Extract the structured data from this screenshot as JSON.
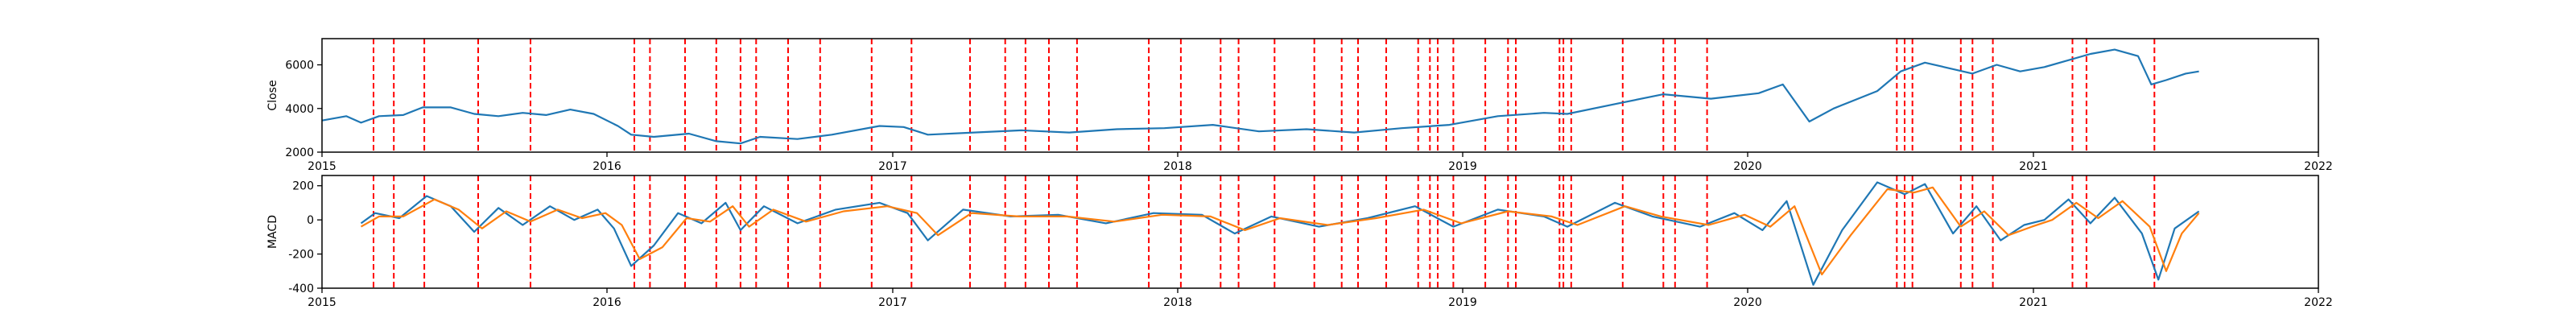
{
  "chart_data": [
    {
      "type": "line",
      "ylabel": "Close",
      "xlabel": "",
      "title": "",
      "xlim": [
        "2015-01-01",
        "2022-01-01"
      ],
      "ylim": [
        2000,
        7200
      ],
      "yticks": [
        2000,
        4000,
        6000
      ],
      "xticks": [
        "2015",
        "2016",
        "2017",
        "2018",
        "2019",
        "2020",
        "2021",
        "2022"
      ],
      "grid": false,
      "series": [
        {
          "color": "#1f77b4",
          "points": [
            [
              "2015-01-01",
              3450
            ],
            [
              "2015-02-01",
              3650
            ],
            [
              "2015-02-20",
              3350
            ],
            [
              "2015-03-15",
              3650
            ],
            [
              "2015-04-15",
              3700
            ],
            [
              "2015-05-10",
              4050
            ],
            [
              "2015-06-15",
              4050
            ],
            [
              "2015-07-15",
              3750
            ],
            [
              "2015-08-15",
              3650
            ],
            [
              "2015-09-15",
              3800
            ],
            [
              "2015-10-15",
              3700
            ],
            [
              "2015-11-15",
              3950
            ],
            [
              "2015-12-15",
              3750
            ],
            [
              "2016-01-15",
              3200
            ],
            [
              "2016-02-01",
              2800
            ],
            [
              "2016-03-01",
              2700
            ],
            [
              "2016-04-15",
              2850
            ],
            [
              "2016-05-20",
              2500
            ],
            [
              "2016-06-20",
              2400
            ],
            [
              "2016-07-15",
              2700
            ],
            [
              "2016-09-01",
              2600
            ],
            [
              "2016-10-15",
              2800
            ],
            [
              "2016-12-15",
              3200
            ],
            [
              "2017-01-15",
              3150
            ],
            [
              "2017-02-15",
              2800
            ],
            [
              "2017-04-15",
              2900
            ],
            [
              "2017-06-15",
              3000
            ],
            [
              "2017-08-15",
              2900
            ],
            [
              "2017-10-15",
              3050
            ],
            [
              "2017-12-15",
              3100
            ],
            [
              "2018-02-15",
              3250
            ],
            [
              "2018-04-15",
              2950
            ],
            [
              "2018-06-15",
              3050
            ],
            [
              "2018-08-15",
              2900
            ],
            [
              "2018-10-15",
              3100
            ],
            [
              "2018-12-15",
              3250
            ],
            [
              "2019-01-15",
              3450
            ],
            [
              "2019-02-15",
              3650
            ],
            [
              "2019-04-15",
              3800
            ],
            [
              "2019-05-15",
              3750
            ],
            [
              "2019-07-15",
              4200
            ],
            [
              "2019-09-15",
              4650
            ],
            [
              "2019-11-15",
              4450
            ],
            [
              "2020-01-15",
              4700
            ],
            [
              "2020-02-15",
              5100
            ],
            [
              "2020-03-20",
              3400
            ],
            [
              "2020-04-20",
              4000
            ],
            [
              "2020-06-15",
              4800
            ],
            [
              "2020-07-15",
              5700
            ],
            [
              "2020-08-15",
              6100
            ],
            [
              "2020-10-15",
              5600
            ],
            [
              "2020-11-15",
              6000
            ],
            [
              "2020-12-15",
              5700
            ],
            [
              "2021-01-15",
              5900
            ],
            [
              "2021-03-15",
              6500
            ],
            [
              "2021-04-15",
              6700
            ],
            [
              "2021-05-15",
              6400
            ],
            [
              "2021-06-01",
              5100
            ],
            [
              "2021-06-20",
              5300
            ],
            [
              "2021-07-15",
              5600
            ],
            [
              "2021-08-01",
              5700
            ]
          ]
        }
      ]
    },
    {
      "type": "line",
      "ylabel": "MACD",
      "xlabel": "",
      "title": "",
      "xlim": [
        "2015-01-01",
        "2022-01-01"
      ],
      "ylim": [
        -400,
        260
      ],
      "yticks": [
        -400,
        -200,
        0,
        200
      ],
      "xticks": [
        "2015",
        "2016",
        "2017",
        "2018",
        "2019",
        "2020",
        "2021",
        "2022"
      ],
      "grid": false,
      "series": [
        {
          "color": "#1f77b4",
          "points": [
            [
              "2015-02-20",
              -20
            ],
            [
              "2015-03-10",
              40
            ],
            [
              "2015-04-10",
              10
            ],
            [
              "2015-05-15",
              140
            ],
            [
              "2015-06-15",
              80
            ],
            [
              "2015-07-15",
              -70
            ],
            [
              "2015-08-15",
              70
            ],
            [
              "2015-09-15",
              -30
            ],
            [
              "2015-10-20",
              80
            ],
            [
              "2015-11-20",
              0
            ],
            [
              "2015-12-20",
              60
            ],
            [
              "2016-01-10",
              -50
            ],
            [
              "2016-02-01",
              -270
            ],
            [
              "2016-03-01",
              -150
            ],
            [
              "2016-04-01",
              40
            ],
            [
              "2016-05-01",
              -20
            ],
            [
              "2016-06-01",
              100
            ],
            [
              "2016-06-20",
              -60
            ],
            [
              "2016-07-20",
              80
            ],
            [
              "2016-09-01",
              -20
            ],
            [
              "2016-10-20",
              60
            ],
            [
              "2016-12-15",
              100
            ],
            [
              "2017-01-20",
              40
            ],
            [
              "2017-02-15",
              -120
            ],
            [
              "2017-04-01",
              60
            ],
            [
              "2017-06-01",
              20
            ],
            [
              "2017-08-01",
              30
            ],
            [
              "2017-10-01",
              -20
            ],
            [
              "2017-12-01",
              40
            ],
            [
              "2018-02-01",
              30
            ],
            [
              "2018-03-15",
              -80
            ],
            [
              "2018-05-01",
              20
            ],
            [
              "2018-07-01",
              -40
            ],
            [
              "2018-09-01",
              10
            ],
            [
              "2018-11-01",
              80
            ],
            [
              "2018-12-20",
              -40
            ],
            [
              "2019-02-15",
              60
            ],
            [
              "2019-04-15",
              20
            ],
            [
              "2019-05-15",
              -40
            ],
            [
              "2019-07-15",
              100
            ],
            [
              "2019-09-01",
              20
            ],
            [
              "2019-11-01",
              -40
            ],
            [
              "2019-12-15",
              40
            ],
            [
              "2020-01-20",
              -60
            ],
            [
              "2020-02-20",
              110
            ],
            [
              "2020-03-25",
              -380
            ],
            [
              "2020-05-01",
              -60
            ],
            [
              "2020-06-15",
              220
            ],
            [
              "2020-07-20",
              150
            ],
            [
              "2020-08-15",
              210
            ],
            [
              "2020-09-20",
              -80
            ],
            [
              "2020-10-20",
              80
            ],
            [
              "2020-11-20",
              -120
            ],
            [
              "2020-12-20",
              -30
            ],
            [
              "2021-01-15",
              0
            ],
            [
              "2021-02-15",
              120
            ],
            [
              "2021-03-15",
              -20
            ],
            [
              "2021-04-15",
              130
            ],
            [
              "2021-05-20",
              -80
            ],
            [
              "2021-06-10",
              -350
            ],
            [
              "2021-07-01",
              -50
            ],
            [
              "2021-08-01",
              50
            ]
          ]
        },
        {
          "color": "#ff7f0e",
          "points": [
            [
              "2015-02-20",
              -40
            ],
            [
              "2015-03-15",
              20
            ],
            [
              "2015-04-15",
              20
            ],
            [
              "2015-05-25",
              120
            ],
            [
              "2015-06-25",
              60
            ],
            [
              "2015-07-25",
              -50
            ],
            [
              "2015-08-25",
              50
            ],
            [
              "2015-09-25",
              -10
            ],
            [
              "2015-10-30",
              60
            ],
            [
              "2015-11-30",
              10
            ],
            [
              "2015-12-30",
              40
            ],
            [
              "2016-01-20",
              -30
            ],
            [
              "2016-02-12",
              -230
            ],
            [
              "2016-03-12",
              -160
            ],
            [
              "2016-04-12",
              10
            ],
            [
              "2016-05-12",
              -10
            ],
            [
              "2016-06-10",
              80
            ],
            [
              "2016-07-01",
              -40
            ],
            [
              "2016-08-01",
              60
            ],
            [
              "2016-09-12",
              -10
            ],
            [
              "2016-10-30",
              50
            ],
            [
              "2016-12-25",
              80
            ],
            [
              "2017-02-01",
              40
            ],
            [
              "2017-02-28",
              -90
            ],
            [
              "2017-04-12",
              40
            ],
            [
              "2017-06-12",
              20
            ],
            [
              "2017-08-12",
              20
            ],
            [
              "2017-10-12",
              -10
            ],
            [
              "2017-12-12",
              30
            ],
            [
              "2018-02-12",
              20
            ],
            [
              "2018-03-28",
              -60
            ],
            [
              "2018-05-12",
              10
            ],
            [
              "2018-07-12",
              -30
            ],
            [
              "2018-09-12",
              10
            ],
            [
              "2018-11-12",
              60
            ],
            [
              "2018-12-30",
              -20
            ],
            [
              "2019-02-28",
              50
            ],
            [
              "2019-04-25",
              20
            ],
            [
              "2019-05-28",
              -30
            ],
            [
              "2019-07-28",
              80
            ],
            [
              "2019-09-12",
              20
            ],
            [
              "2019-11-12",
              -30
            ],
            [
              "2019-12-28",
              30
            ],
            [
              "2020-01-30",
              -40
            ],
            [
              "2020-03-01",
              80
            ],
            [
              "2020-04-05",
              -320
            ],
            [
              "2020-05-12",
              -90
            ],
            [
              "2020-06-28",
              180
            ],
            [
              "2020-08-01",
              160
            ],
            [
              "2020-08-25",
              190
            ],
            [
              "2020-09-30",
              -40
            ],
            [
              "2020-10-30",
              50
            ],
            [
              "2020-11-30",
              -90
            ],
            [
              "2020-12-30",
              -40
            ],
            [
              "2021-01-25",
              0
            ],
            [
              "2021-02-25",
              100
            ],
            [
              "2021-03-25",
              10
            ],
            [
              "2021-04-25",
              110
            ],
            [
              "2021-05-30",
              -40
            ],
            [
              "2021-06-20",
              -300
            ],
            [
              "2021-07-10",
              -80
            ],
            [
              "2021-08-01",
              40
            ]
          ]
        }
      ]
    }
  ],
  "signal_lines": {
    "color": "#ff0000",
    "dates": [
      "2015-03-08",
      "2015-04-03",
      "2015-05-12",
      "2015-07-20",
      "2015-09-25",
      "2016-02-05",
      "2016-02-25",
      "2016-04-10",
      "2016-05-20",
      "2016-06-20",
      "2016-07-10",
      "2016-08-20",
      "2016-09-30",
      "2016-12-05",
      "2017-01-25",
      "2017-04-10",
      "2017-05-25",
      "2017-06-20",
      "2017-07-20",
      "2017-08-25",
      "2017-11-25",
      "2018-01-05",
      "2018-02-25",
      "2018-03-20",
      "2018-05-05",
      "2018-06-25",
      "2018-07-30",
      "2018-08-20",
      "2018-09-25",
      "2018-11-05",
      "2018-11-20",
      "2018-11-30",
      "2018-12-20",
      "2019-01-30",
      "2019-02-28",
      "2019-03-10",
      "2019-05-05",
      "2019-05-10",
      "2019-05-20",
      "2019-07-25",
      "2019-09-15",
      "2019-09-30",
      "2019-11-10",
      "2020-07-10",
      "2020-07-20",
      "2020-07-30",
      "2020-09-30",
      "2020-10-15",
      "2020-11-10",
      "2021-02-20",
      "2021-03-10",
      "2021-06-05"
    ]
  }
}
